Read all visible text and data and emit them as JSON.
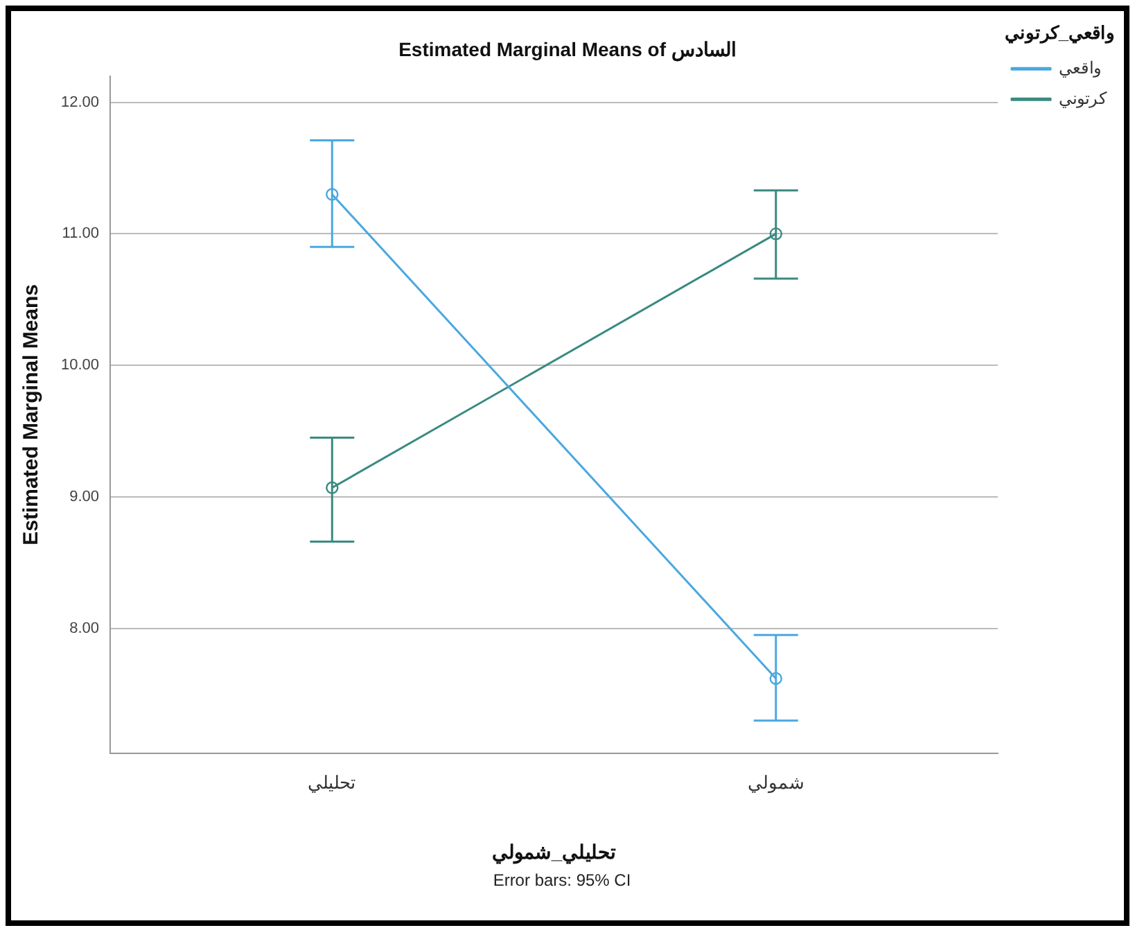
{
  "chart_data": {
    "type": "line",
    "title": "Estimated Marginal Means of السادس",
    "xlabel": "تحليلي_شمولي",
    "ylabel": "Estimated Marginal Means",
    "legend_title": "واقعي_كرتوني",
    "categories": [
      "تحليلي",
      "شمولي"
    ],
    "series": [
      {
        "name": "واقعي",
        "color": "#4aa8e0",
        "values": [
          11.3,
          7.62
        ],
        "errors": [
          [
            10.9,
            11.71
          ],
          [
            7.3,
            7.95
          ]
        ]
      },
      {
        "name": "كرتوني",
        "color": "#3a8a80",
        "values": [
          9.07,
          11.0
        ],
        "errors": [
          [
            8.66,
            9.45
          ],
          [
            10.66,
            11.33
          ]
        ]
      }
    ],
    "ylim": [
      7.05,
      12.2
    ],
    "yticks": [
      {
        "value": 8,
        "label": "8.00"
      },
      {
        "value": 9,
        "label": "9.00"
      },
      {
        "value": 10,
        "label": "10.00"
      },
      {
        "value": 11,
        "label": "11.00"
      },
      {
        "value": 12,
        "label": "12.00"
      }
    ],
    "grid": "y",
    "legend": "top right",
    "marker": "circle",
    "line_style": "solid",
    "annotations": [
      "Error bars: 95% CI"
    ]
  }
}
